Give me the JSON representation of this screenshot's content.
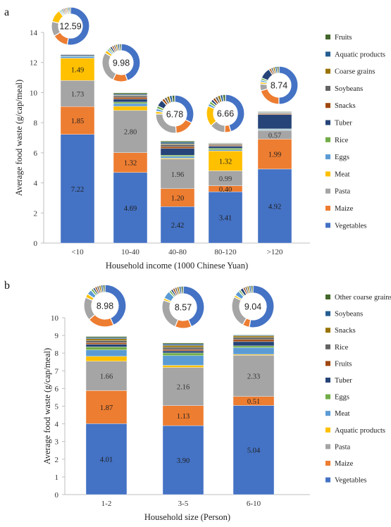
{
  "chart_data": [
    {
      "panel": "a",
      "type": "bar",
      "stacked": true,
      "xlabel": "Household income (1000 Chinese Yuan)",
      "ylabel": "Average food  waste (g/cap/meal)",
      "ylim": [
        0,
        14
      ],
      "yticks": [
        0,
        2,
        4,
        6,
        8,
        10,
        12,
        14
      ],
      "categories": [
        "<10",
        "10-40",
        "40-80",
        "80-120",
        ">120"
      ],
      "totals": [
        "12.59",
        "9.98",
        "6.78",
        "6.66",
        "8.74"
      ],
      "legend": [
        "Fruits",
        "Aquatic products",
        "Coarse grains",
        "Soybeans",
        "Snacks",
        "Tuber",
        "Rice",
        "Eggs",
        "Meat",
        "Pasta",
        "Maize",
        "Vegetables"
      ],
      "series": [
        {
          "name": "Vegetables",
          "color": "#4472C4",
          "values": [
            7.22,
            4.69,
            2.42,
            3.41,
            4.92
          ],
          "labels": [
            "7.22",
            "4.69",
            "2.42",
            "3.41",
            "4.92"
          ]
        },
        {
          "name": "Maize",
          "color": "#ED7D31",
          "values": [
            1.85,
            1.32,
            1.2,
            0.4,
            1.99
          ],
          "labels": [
            "1.85",
            "1.32",
            "1.20",
            "0.40",
            "1.99"
          ]
        },
        {
          "name": "Pasta",
          "color": "#A5A5A5",
          "values": [
            1.73,
            2.8,
            1.96,
            0.99,
            0.57
          ],
          "labels": [
            "1.73",
            "2.80",
            "1.96",
            "0.99",
            "0.57"
          ]
        },
        {
          "name": "Meat",
          "color": "#FFC000",
          "values": [
            1.49,
            0.28,
            0.06,
            1.32,
            0.02
          ],
          "labels": [
            "1.49",
            "",
            "",
            "1.32",
            ""
          ]
        },
        {
          "name": "Eggs",
          "color": "#5B9BD5",
          "values": [
            0.12,
            0.18,
            0.12,
            0.08,
            0.06
          ],
          "labels": [
            "",
            "",
            "",
            "",
            ""
          ]
        },
        {
          "name": "Rice",
          "color": "#70AD47",
          "values": [
            0.04,
            0.1,
            0.08,
            0.1,
            0.03
          ],
          "labels": [
            "",
            "",
            "",
            "",
            ""
          ]
        },
        {
          "name": "Tuber",
          "color": "#264478",
          "values": [
            0.06,
            0.2,
            0.45,
            0.14,
            0.95
          ],
          "labels": [
            "",
            "",
            "",
            "",
            ""
          ]
        },
        {
          "name": "Snacks",
          "color": "#9E480E",
          "values": [
            0.02,
            0.12,
            0.12,
            0.06,
            0.05
          ],
          "labels": [
            "",
            "",
            "",
            "",
            ""
          ]
        },
        {
          "name": "Soybeans",
          "color": "#636363",
          "values": [
            0.03,
            0.1,
            0.14,
            0.06,
            0.05
          ],
          "labels": [
            "",
            "",
            "",
            "",
            ""
          ]
        },
        {
          "name": "Coarse grains",
          "color": "#997300",
          "values": [
            0.01,
            0.04,
            0.05,
            0.04,
            0.03
          ],
          "labels": [
            "",
            "",
            "",
            "",
            ""
          ]
        },
        {
          "name": "Aquatic products",
          "color": "#255E91",
          "values": [
            0.01,
            0.07,
            0.1,
            0.03,
            0.04
          ],
          "labels": [
            "",
            "",
            "",
            "",
            ""
          ]
        },
        {
          "name": "Fruits",
          "color": "#43682B",
          "values": [
            0.01,
            0.08,
            0.08,
            0.03,
            0.03
          ],
          "labels": [
            "",
            "",
            "",
            "",
            ""
          ]
        }
      ]
    },
    {
      "panel": "b",
      "type": "bar",
      "stacked": true,
      "xlabel": "Household size (Person)",
      "ylabel": "Average food  waste (g/cap/meal)",
      "ylim": [
        0,
        10
      ],
      "yticks": [
        0,
        1,
        2,
        3,
        4,
        5,
        6,
        7,
        8,
        9,
        10
      ],
      "categories": [
        "1-2",
        "3-5",
        "6-10"
      ],
      "totals": [
        "8.98",
        "8.57",
        "9.04"
      ],
      "legend": [
        "Other coarse grains",
        "Soybeans",
        "Snacks",
        "Rice",
        "Fruits",
        "Tuber",
        "Eggs",
        "Meat",
        "Aquatic products",
        "Pasta",
        "Maize",
        "Vegetables"
      ],
      "series": [
        {
          "name": "Vegetables",
          "color": "#4472C4",
          "values": [
            4.01,
            3.9,
            5.04
          ],
          "labels": [
            "4.01",
            "3.90",
            "5.04"
          ]
        },
        {
          "name": "Maize",
          "color": "#ED7D31",
          "values": [
            1.87,
            1.13,
            0.51
          ],
          "labels": [
            "1.87",
            "1.13",
            "0.51"
          ]
        },
        {
          "name": "Pasta",
          "color": "#A5A5A5",
          "values": [
            1.66,
            2.16,
            2.33
          ],
          "labels": [
            "1.66",
            "2.16",
            "2.33"
          ]
        },
        {
          "name": "Aquatic products",
          "color": "#FFC000",
          "values": [
            0.28,
            0.12,
            0.05
          ],
          "labels": [
            "",
            "",
            ""
          ]
        },
        {
          "name": "Meat",
          "color": "#5B9BD5",
          "values": [
            0.36,
            0.55,
            0.38
          ],
          "labels": [
            "",
            "",
            ""
          ]
        },
        {
          "name": "Eggs",
          "color": "#70AD47",
          "values": [
            0.17,
            0.15,
            0.1
          ],
          "labels": [
            "",
            "",
            ""
          ]
        },
        {
          "name": "Tuber",
          "color": "#264478",
          "values": [
            0.15,
            0.12,
            0.24
          ],
          "labels": [
            "",
            "",
            ""
          ]
        },
        {
          "name": "Fruits",
          "color": "#9E480E",
          "values": [
            0.09,
            0.08,
            0.12
          ],
          "labels": [
            "",
            "",
            ""
          ]
        },
        {
          "name": "Rice",
          "color": "#636363",
          "values": [
            0.12,
            0.12,
            0.12
          ],
          "labels": [
            "",
            "",
            ""
          ]
        },
        {
          "name": "Snacks",
          "color": "#997300",
          "values": [
            0.1,
            0.1,
            0.08
          ],
          "labels": [
            "",
            "",
            ""
          ]
        },
        {
          "name": "Soybeans",
          "color": "#255E91",
          "values": [
            0.07,
            0.08,
            0.04
          ],
          "labels": [
            "",
            "",
            ""
          ]
        },
        {
          "name": "Other coarse grains",
          "color": "#43682B",
          "values": [
            0.06,
            0.06,
            0.03
          ],
          "labels": [
            "",
            "",
            ""
          ]
        }
      ]
    }
  ]
}
